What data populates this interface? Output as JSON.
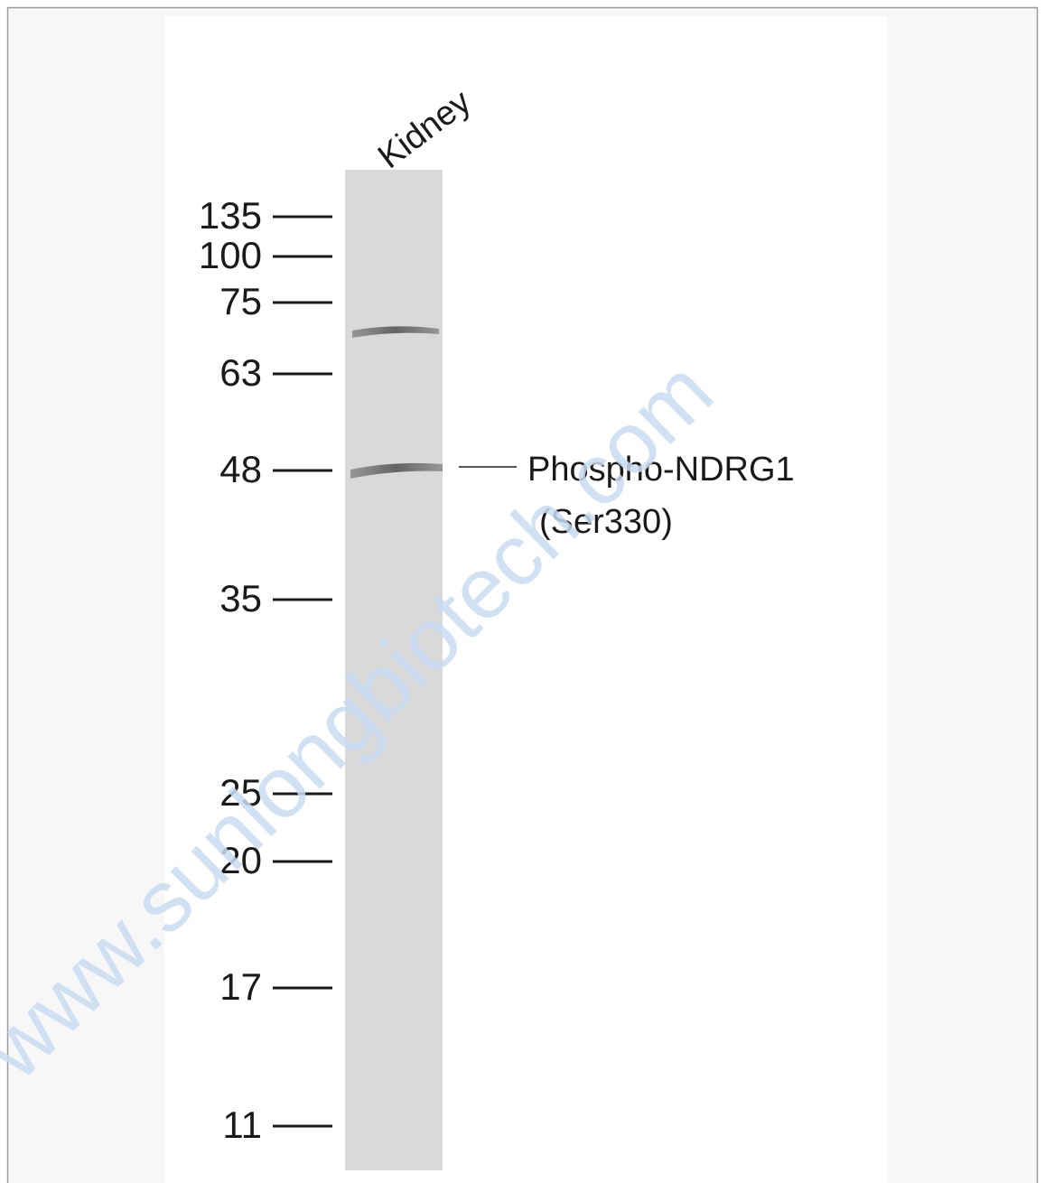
{
  "lane_label": "Kidney",
  "markers": [
    135,
    100,
    75,
    63,
    48,
    35,
    25,
    20,
    17,
    11
  ],
  "band_label": {
    "line1": "Phospho-NDRG1",
    "line2": "(Ser330)"
  },
  "watermark": "www.sunlongbiotech.com"
}
